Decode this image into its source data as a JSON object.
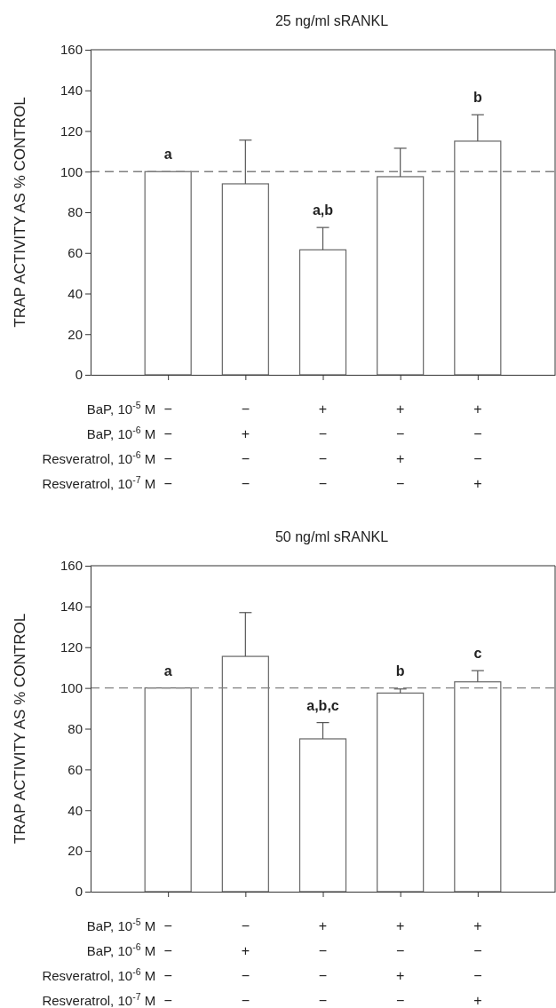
{
  "chart_data": [
    {
      "type": "bar",
      "title": "25 ng/ml sRANKL",
      "ylabel": "TRAP ACTIVITY AS % CONTROL",
      "xlabel": "BaP, 10$^{-5}$ M\nBaP, 10$^{-6}$ M\nResveratrol, 10$^{-6}$ M\nResveratrol, 10$^{-7}$ M",
      "categories": [
        "−\n−\n−\n−",
        "−\n+\n−\n−",
        "+\n−\n−\n−",
        "+\n−\n+\n−",
        "+\n−\n−\n+"
      ],
      "values": [
        100,
        94,
        61.5,
        97.5,
        115
      ],
      "errors": [
        null,
        21.5,
        11,
        14,
        13
      ],
      "color": "#ffffff",
      "ylim": [
        0,
        160
      ],
      "yticks": [
        0,
        20,
        40,
        60,
        80,
        100,
        120,
        140,
        160
      ],
      "ref_lines": [
        {
          "axis": "y",
          "value": 100,
          "color": "#808080",
          "line_style": "dashed"
        }
      ],
      "annotations": [
        {
          "text": "a",
          "x": "−\n−\n−\n−",
          "y": 100
        },
        {
          "text": "a,b",
          "x": "+\n−\n−\n−",
          "y": 72.5
        },
        {
          "text": "b",
          "x": "+\n−\n−\n+",
          "y": 128
        }
      ]
    },
    {
      "type": "bar",
      "title": "50 ng/ml sRANKL",
      "ylabel": "TRAP ACTIVITY AS % CONTROL",
      "xlabel": "BaP, 10$^{-5}$ M\nBaP, 10$^{-6}$ M\nResveratrol, 10$^{-6}$ M\nResveratrol, 10$^{-7}$ M",
      "categories": [
        "−\n−\n−\n−",
        "−\n+\n−\n−",
        "+\n−\n−\n−",
        "+\n−\n+\n−",
        "+\n−\n−\n+"
      ],
      "values": [
        100,
        115.5,
        75,
        97.5,
        103
      ],
      "errors": [
        null,
        21.5,
        8,
        2,
        5.5
      ],
      "color": "#ffffff",
      "ylim": [
        0,
        160
      ],
      "yticks": [
        0,
        20,
        40,
        60,
        80,
        100,
        120,
        140,
        160
      ],
      "ref_lines": [
        {
          "axis": "y",
          "value": 100,
          "color": "#808080",
          "line_style": "dashed"
        }
      ],
      "annotations": [
        {
          "text": "a",
          "x": "−\n−\n−\n−",
          "y": 100
        },
        {
          "text": "a,b,c",
          "x": "+\n−\n−\n−",
          "y": 83
        },
        {
          "text": "b",
          "x": "+\n−\n+\n−",
          "y": 100
        },
        {
          "text": "c",
          "x": "+\n−\n−\n+",
          "y": 108.5
        }
      ]
    }
  ]
}
